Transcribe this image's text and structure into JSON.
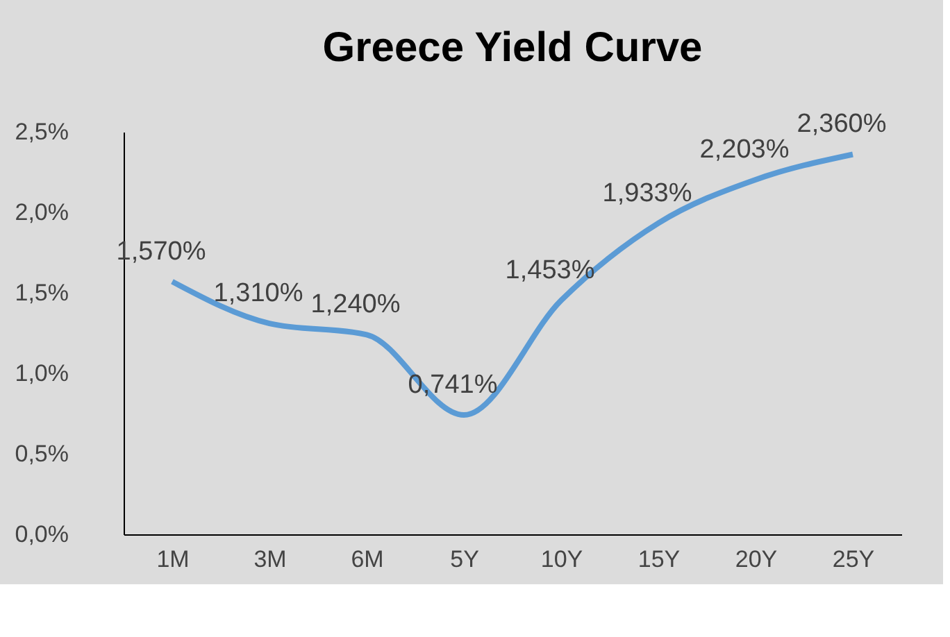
{
  "chart_data": {
    "type": "line",
    "title": "Greece Yield Curve",
    "categories": [
      "1M",
      "3M",
      "6M",
      "5Y",
      "10Y",
      "15Y",
      "20Y",
      "25Y"
    ],
    "series": [
      {
        "color": "#5b9bd5",
        "values": [
          1.57,
          1.31,
          1.24,
          0.741,
          1.453,
          1.933,
          2.203,
          2.36
        ],
        "value_labels": [
          "1,570%",
          "1,310%",
          "1,240%",
          "0,741%",
          "1,453%",
          "1,933%",
          "2,203%",
          "2,360%"
        ]
      }
    ],
    "ylim": [
      0,
      2.5
    ],
    "yticks": [
      {
        "value": 0,
        "label": "0,0%"
      },
      {
        "value": 0.5,
        "label": "0,5%"
      },
      {
        "value": 1,
        "label": "1,0%"
      },
      {
        "value": 1.5,
        "label": "1,5%"
      },
      {
        "value": 2,
        "label": "2,0%"
      },
      {
        "value": 2.5,
        "label": "2,5%"
      }
    ]
  }
}
